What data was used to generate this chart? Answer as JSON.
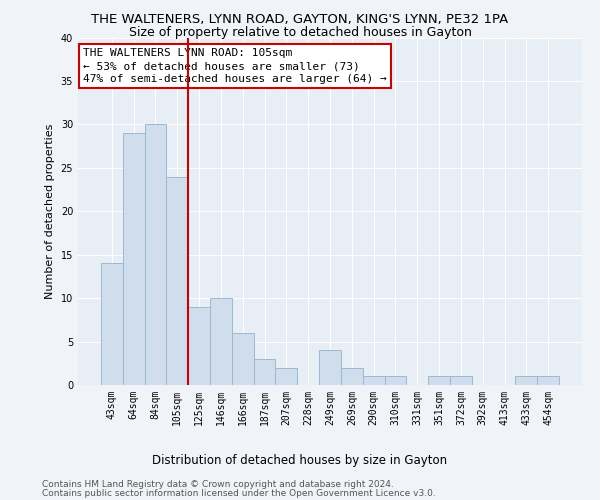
{
  "title": "THE WALTENERS, LYNN ROAD, GAYTON, KING'S LYNN, PE32 1PA",
  "subtitle": "Size of property relative to detached houses in Gayton",
  "xlabel": "Distribution of detached houses by size in Gayton",
  "ylabel": "Number of detached properties",
  "categories": [
    "43sqm",
    "64sqm",
    "84sqm",
    "105sqm",
    "125sqm",
    "146sqm",
    "166sqm",
    "187sqm",
    "207sqm",
    "228sqm",
    "249sqm",
    "269sqm",
    "290sqm",
    "310sqm",
    "331sqm",
    "351sqm",
    "372sqm",
    "392sqm",
    "413sqm",
    "433sqm",
    "454sqm"
  ],
  "values": [
    14,
    29,
    30,
    24,
    9,
    10,
    6,
    3,
    2,
    0,
    4,
    2,
    1,
    1,
    0,
    1,
    1,
    0,
    0,
    1,
    1
  ],
  "bar_color": "#cfdded",
  "bar_edge_color": "#9ab9d0",
  "highlight_bar_idx": 3,
  "highlight_color": "#cc0000",
  "ylim": [
    0,
    40
  ],
  "yticks": [
    0,
    5,
    10,
    15,
    20,
    25,
    30,
    35,
    40
  ],
  "annotation_title": "THE WALTENERS LYNN ROAD: 105sqm",
  "annotation_line1": "← 53% of detached houses are smaller (73)",
  "annotation_line2": "47% of semi-detached houses are larger (64) →",
  "annotation_box_color": "#ffffff",
  "annotation_box_edge": "#cc0000",
  "footer_line1": "Contains HM Land Registry data © Crown copyright and database right 2024.",
  "footer_line2": "Contains public sector information licensed under the Open Government Licence v3.0.",
  "bg_color": "#f0f4f8",
  "plot_bg_color": "#e8eef5",
  "grid_color": "#ffffff",
  "title_fontsize": 9.5,
  "subtitle_fontsize": 9,
  "label_fontsize": 8.5,
  "ylabel_fontsize": 8,
  "tick_fontsize": 7,
  "footer_fontsize": 6.5,
  "ann_fontsize": 8
}
